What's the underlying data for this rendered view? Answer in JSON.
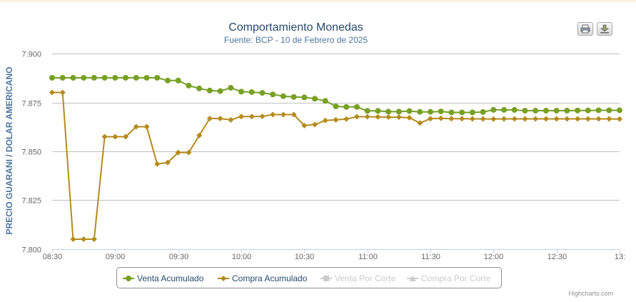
{
  "chart_data": {
    "type": "line",
    "title": "Comportamiento Monedas",
    "subtitle": "Fuente: BCP - 10 de Febrero de 2025",
    "ylabel": "PRECIO GUARANI / DOLAR AMERICANO",
    "xlabel": "",
    "ylim": [
      7.8,
      7.9
    ],
    "yticks": [
      "7.800",
      "7.825",
      "7.850",
      "7.875",
      "7.900"
    ],
    "ytick_values": [
      7.8,
      7.825,
      7.85,
      7.875,
      7.9
    ],
    "xlim_minutes": [
      510,
      780
    ],
    "xticks": [
      "08:30",
      "09:00",
      "09:30",
      "10:00",
      "10:30",
      "11:00",
      "11:30",
      "12:00",
      "12:30",
      "13:"
    ],
    "xtick_minutes": [
      510,
      540,
      570,
      600,
      630,
      660,
      690,
      720,
      750,
      780
    ],
    "grid": true,
    "legend_position": "bottom",
    "series": [
      {
        "name": "Venta Acumulado",
        "color": "#77a025",
        "marker": "circle",
        "visible": true,
        "x_minutes": [
          510,
          515,
          520,
          525,
          530,
          535,
          540,
          545,
          550,
          555,
          560,
          565,
          570,
          575,
          580,
          585,
          590,
          595,
          600,
          605,
          610,
          615,
          620,
          625,
          630,
          635,
          640,
          645,
          650,
          655,
          660,
          665,
          670,
          675,
          680,
          685,
          690,
          695,
          700,
          705,
          710,
          715,
          720,
          725,
          730,
          735,
          740,
          745,
          750,
          755,
          760,
          765,
          770,
          775,
          780
        ],
        "values": [
          7.8876,
          7.8876,
          7.8876,
          7.8876,
          7.8876,
          7.8876,
          7.8876,
          7.8876,
          7.8876,
          7.8876,
          7.8876,
          7.8862,
          7.8862,
          7.8836,
          7.8822,
          7.8811,
          7.8808,
          7.8825,
          7.8805,
          7.8803,
          7.8799,
          7.8791,
          7.8782,
          7.8778,
          7.8776,
          7.8769,
          7.8758,
          7.873,
          7.8727,
          7.8727,
          7.8707,
          7.8707,
          7.8703,
          7.8703,
          7.8706,
          7.8702,
          7.8702,
          7.8704,
          7.8699,
          7.8699,
          7.8699,
          7.8701,
          7.8712,
          7.8712,
          7.8712,
          7.8708,
          7.8708,
          7.8708,
          7.8708,
          7.8708,
          7.8709,
          7.8709,
          7.871,
          7.871,
          7.871
        ]
      },
      {
        "name": "Compra Acumulado",
        "color": "#b58b1c",
        "marker": "diamond",
        "visible": true,
        "x_minutes": [
          510,
          515,
          520,
          525,
          530,
          535,
          540,
          545,
          550,
          555,
          560,
          565,
          570,
          575,
          580,
          585,
          590,
          595,
          600,
          605,
          610,
          615,
          620,
          625,
          630,
          635,
          640,
          645,
          650,
          655,
          660,
          665,
          670,
          675,
          680,
          685,
          690,
          695,
          700,
          705,
          710,
          715,
          720,
          725,
          730,
          735,
          740,
          745,
          750,
          755,
          760,
          765,
          770,
          775,
          780
        ],
        "values": [
          7.8801,
          7.8801,
          7.8051,
          7.8051,
          7.8051,
          7.8575,
          7.8575,
          7.8575,
          7.8626,
          7.8626,
          7.8435,
          7.8443,
          7.8494,
          7.8494,
          7.8581,
          7.8668,
          7.8668,
          7.8661,
          7.8678,
          7.8678,
          7.8679,
          7.8688,
          7.8688,
          7.8688,
          7.8632,
          7.8637,
          7.8658,
          7.8661,
          7.8665,
          7.8677,
          7.8677,
          7.8676,
          7.8675,
          7.8675,
          7.8672,
          7.8645,
          7.8667,
          7.8669,
          7.8667,
          7.8667,
          7.8666,
          7.8666,
          7.8665,
          7.8666,
          7.8666,
          7.8666,
          7.8666,
          7.8666,
          7.8666,
          7.8666,
          7.8666,
          7.8666,
          7.8666,
          7.8666,
          7.8665
        ]
      },
      {
        "name": "Venta Por Corte",
        "color": "#cccccc",
        "marker": "square",
        "visible": false,
        "values": []
      },
      {
        "name": "Compra Por Corte",
        "color": "#cccccc",
        "marker": "triangle",
        "visible": false,
        "values": []
      }
    ]
  },
  "credits": "Highcharts.com",
  "toolbar": {
    "print_icon": "print-icon",
    "download_icon": "download-icon"
  }
}
